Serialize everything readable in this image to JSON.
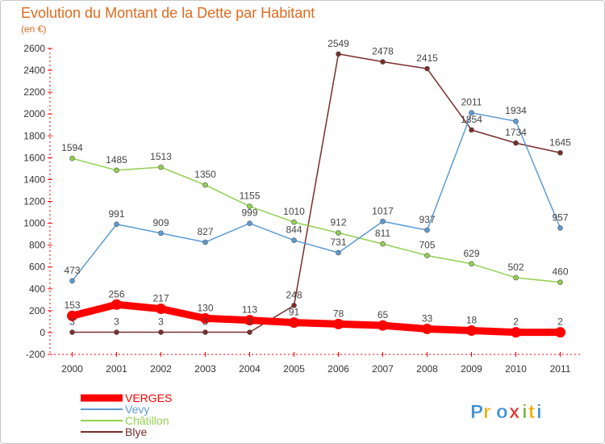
{
  "chart_data": {
    "type": "line",
    "title": "Evolution du Montant de la Dette par Habitant",
    "subtitle": "(en €)",
    "categories": [
      "2000",
      "2001",
      "2002",
      "2003",
      "2004",
      "2005",
      "2006",
      "2007",
      "2008",
      "2009",
      "2010",
      "2011"
    ],
    "ylim": [
      -200,
      2600
    ],
    "yticks": [
      -200,
      0,
      200,
      400,
      600,
      800,
      1000,
      1200,
      1400,
      1600,
      1800,
      2000,
      2200,
      2400,
      2600
    ],
    "series": [
      {
        "name": "VERGES",
        "color": "#ff0000",
        "values": [
          153,
          256,
          217,
          130,
          113,
          91,
          78,
          65,
          33,
          18,
          2,
          2
        ]
      },
      {
        "name": "Vevy",
        "color": "#5b9bd5",
        "values": [
          473,
          991,
          909,
          827,
          999,
          844,
          731,
          1017,
          937,
          2011,
          1934,
          957
        ]
      },
      {
        "name": "Châtillon",
        "color": "#92d050",
        "values": [
          1594,
          1485,
          1513,
          1350,
          1155,
          1010,
          912,
          811,
          705,
          629,
          502,
          460
        ]
      },
      {
        "name": "Blye",
        "color": "#7b2c2c",
        "values": [
          3,
          3,
          3,
          3,
          3,
          248,
          2549,
          2478,
          2415,
          1854,
          1734,
          1645
        ]
      }
    ],
    "grid": false,
    "legend": "bottom-left"
  },
  "logo": {
    "text": "Proxiti",
    "colors": [
      "#3a8fd8",
      "#f2a900",
      "#3a8fd8",
      "#e3342f",
      "#7cb342",
      "#f2a900",
      "#3a8fd8"
    ]
  }
}
